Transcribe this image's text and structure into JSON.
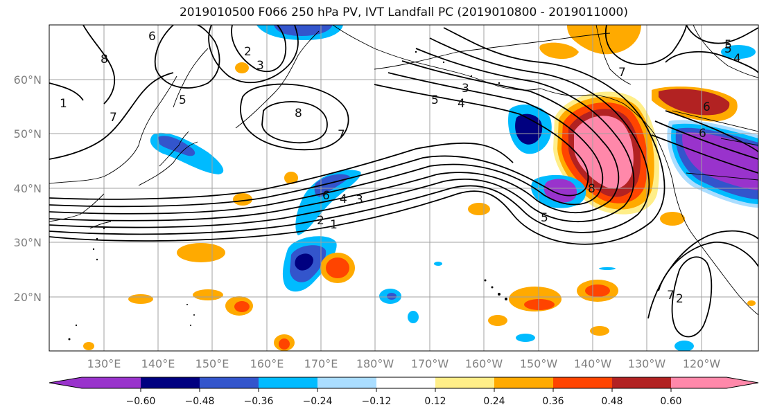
{
  "title": "2019010500 F066 250 hPa PV, IVT Landfall PC (2019010800 - 2019011000)",
  "map": {
    "lon_labels": [
      "130°E",
      "140°E",
      "150°E",
      "160°E",
      "170°E",
      "180°W",
      "170°W",
      "160°W",
      "150°W",
      "140°W",
      "130°W",
      "120°W"
    ],
    "lat_labels": [
      "60°N",
      "50°N",
      "40°N",
      "30°N",
      "20°N"
    ],
    "contour_labels": [
      "8",
      "6",
      "2",
      "3",
      "5",
      "7",
      "1",
      "8",
      "7",
      "3",
      "4",
      "5",
      "5",
      "8",
      "6",
      "4",
      "3",
      "2",
      "1",
      "5",
      "7",
      "6",
      "5",
      "4",
      "6",
      "7",
      "2"
    ],
    "colors": {
      "pv_contour": "#000000",
      "coastline": "#000000",
      "grid": "#a0a0a0"
    }
  },
  "colorbar": {
    "tick_labels": [
      "−0.60",
      "−0.48",
      "−0.36",
      "−0.24",
      "−0.12",
      "0.12",
      "0.24",
      "0.36",
      "0.48",
      "0.60"
    ],
    "bins": [
      "#9933cc",
      "#000080",
      "#3355cc",
      "#00bbff",
      "#aaddff",
      "#ffffff",
      "#ffee88",
      "#ffaa00",
      "#ff4400",
      "#b22222",
      "#ff88aa"
    ]
  }
}
